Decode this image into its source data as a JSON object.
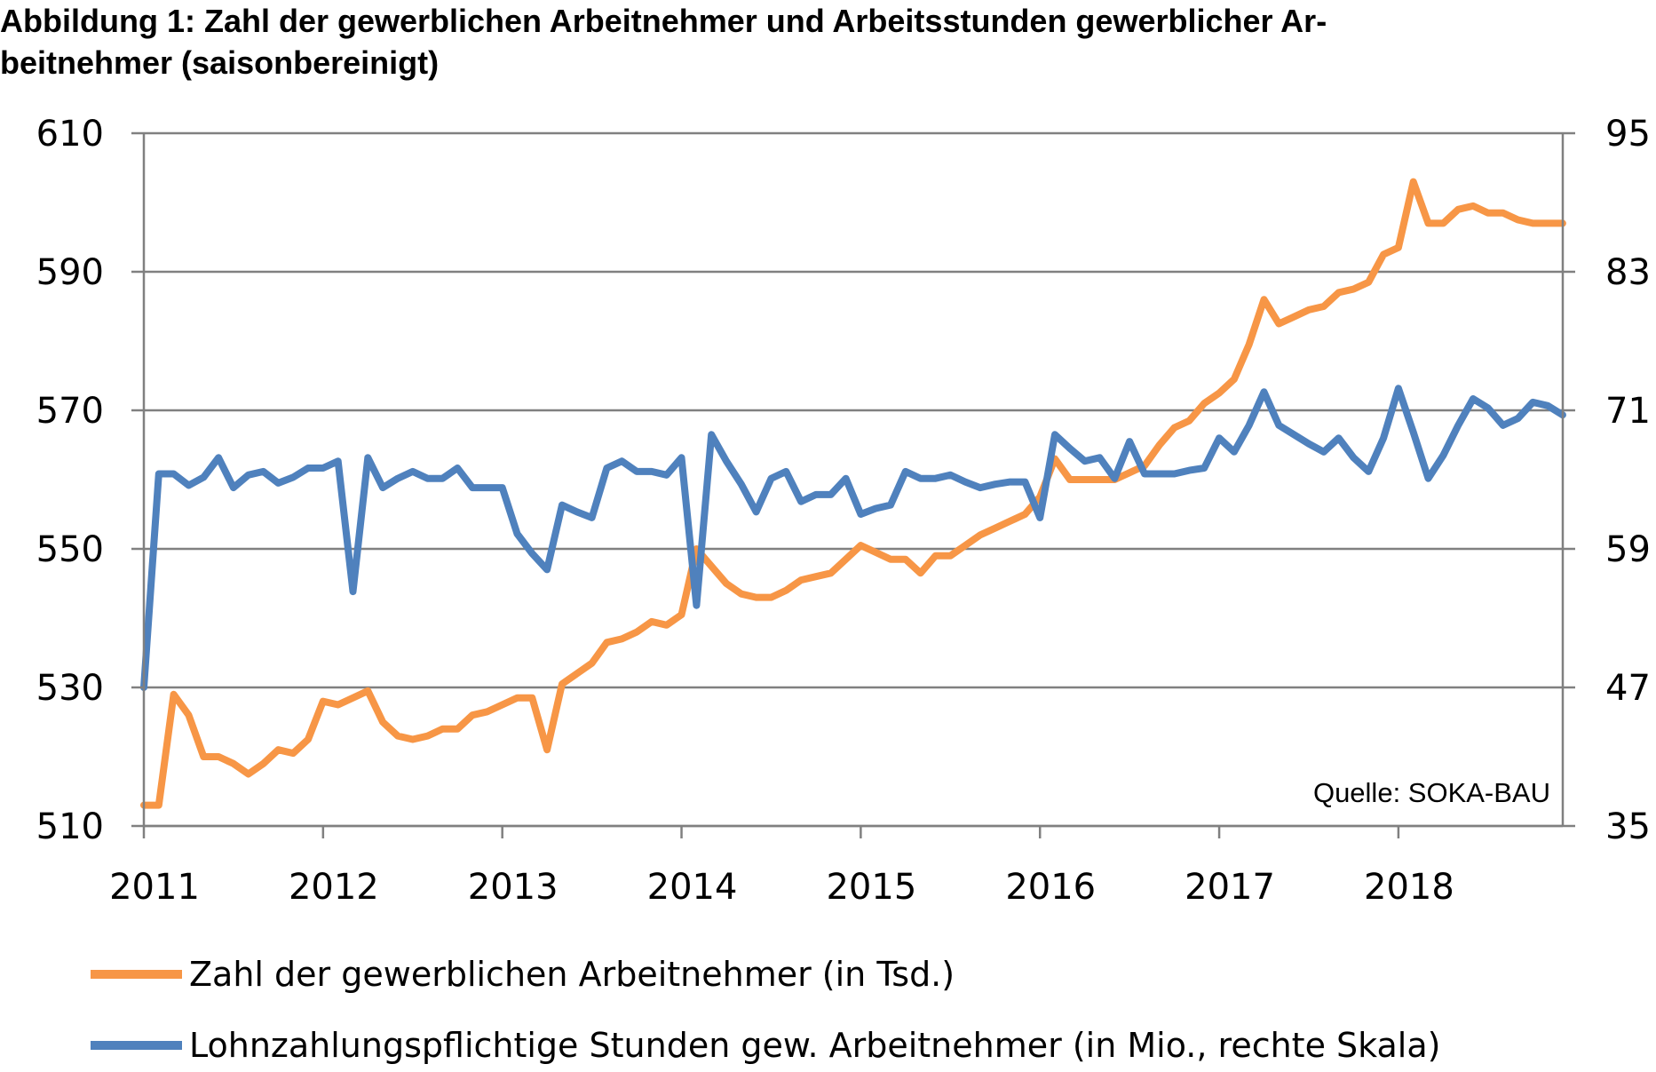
{
  "title_line1": "Abbildung 1: Zahl der gewerblichen Arbeitnehmer und Arbeitsstunden gewerblicher Ar-",
  "title_line2": "beitnehmer (saisonbereinigt)",
  "source": "Quelle: SOKA-BAU",
  "colors": {
    "workers": "#F79646",
    "hours": "#4F81BD",
    "grid": "#808080"
  },
  "chart_data": {
    "type": "line",
    "title": "Abbildung 1: Zahl der gewerblichen Arbeitnehmer und Arbeitsstunden gewerblicher Arbeitnehmer (saisonbereinigt)",
    "x_ticks": [
      "2011",
      "2012",
      "2013",
      "2014",
      "2015",
      "2016",
      "2017",
      "2018"
    ],
    "x_start": 2011,
    "x_range": [
      2011,
      2018.917
    ],
    "y_left_ticks": [
      "510",
      "530",
      "550",
      "570",
      "590",
      "610"
    ],
    "y_left_range": [
      510,
      610
    ],
    "y_right_ticks": [
      "35",
      "47",
      "59",
      "71",
      "83",
      "95"
    ],
    "y_right_range": [
      35,
      95
    ],
    "grid": "horizontal",
    "legend_position": "bottom",
    "series": [
      {
        "name": "Zahl der gewerblichen Arbeitnehmer (in Tsd.)",
        "axis": "left",
        "x": [
          "2011-01",
          "2011-02",
          "2011-03",
          "2011-04",
          "2011-05",
          "2011-06",
          "2011-07",
          "2011-08",
          "2011-09",
          "2011-10",
          "2011-11",
          "2011-12",
          "2012-01",
          "2012-02",
          "2012-03",
          "2012-04",
          "2012-05",
          "2012-06",
          "2012-07",
          "2012-08",
          "2012-09",
          "2012-10",
          "2012-11",
          "2012-12",
          "2013-01",
          "2013-02",
          "2013-03",
          "2013-04",
          "2013-05",
          "2013-06",
          "2013-07",
          "2013-08",
          "2013-09",
          "2013-10",
          "2013-11",
          "2013-12",
          "2014-01",
          "2014-02",
          "2014-03",
          "2014-04",
          "2014-05",
          "2014-06",
          "2014-07",
          "2014-08",
          "2014-09",
          "2014-10",
          "2014-11",
          "2014-12",
          "2015-01",
          "2015-02",
          "2015-03",
          "2015-04",
          "2015-05",
          "2015-06",
          "2015-07",
          "2015-08",
          "2015-09",
          "2015-10",
          "2015-11",
          "2015-12",
          "2016-01",
          "2016-02",
          "2016-03",
          "2016-04",
          "2016-05",
          "2016-06",
          "2016-07",
          "2016-08",
          "2016-09",
          "2016-10",
          "2016-11",
          "2016-12",
          "2017-01",
          "2017-02",
          "2017-03",
          "2017-04",
          "2017-05",
          "2017-06",
          "2017-07",
          "2017-08",
          "2017-09",
          "2017-10",
          "2017-11",
          "2017-12",
          "2018-01",
          "2018-02",
          "2018-03",
          "2018-04",
          "2018-05",
          "2018-06",
          "2018-07",
          "2018-08",
          "2018-09",
          "2018-10",
          "2018-11",
          "2018-12"
        ],
        "values": [
          513,
          513,
          529,
          526,
          520,
          520,
          519,
          517.5,
          519,
          521,
          520.5,
          522.5,
          528,
          527.5,
          528.5,
          529.5,
          525,
          523,
          522.5,
          523,
          524,
          524,
          526,
          526.5,
          527.5,
          528.5,
          528.5,
          521,
          530.5,
          532,
          533.5,
          536.5,
          537,
          538,
          539.5,
          539,
          540.5,
          550,
          547.5,
          545,
          543.5,
          543,
          543,
          544,
          545.5,
          546,
          546.5,
          548.5,
          550.5,
          549.5,
          548.5,
          548.5,
          546.5,
          549,
          549,
          550.5,
          552,
          553,
          554,
          555,
          557.5,
          563,
          560,
          560,
          560,
          560,
          561,
          562,
          565,
          567.5,
          568.5,
          571,
          572.5,
          574.5,
          579.5,
          586,
          582.5,
          583.5,
          584.5,
          585,
          587,
          587.5,
          588.5,
          592.5,
          593.5,
          603,
          597,
          597,
          599,
          599.5,
          598.5,
          598.5,
          597.5,
          597,
          597,
          597
        ]
      },
      {
        "name": "Lohnzahlungspflichtige Stunden gew. Arbeitnehmer (in Mio., rechte Skala)",
        "axis": "right",
        "x": [
          "2011-01",
          "2011-02",
          "2011-03",
          "2011-04",
          "2011-05",
          "2011-06",
          "2011-07",
          "2011-08",
          "2011-09",
          "2011-10",
          "2011-11",
          "2011-12",
          "2012-01",
          "2012-02",
          "2012-03",
          "2012-04",
          "2012-05",
          "2012-06",
          "2012-07",
          "2012-08",
          "2012-09",
          "2012-10",
          "2012-11",
          "2012-12",
          "2013-01",
          "2013-02",
          "2013-03",
          "2013-04",
          "2013-05",
          "2013-06",
          "2013-07",
          "2013-08",
          "2013-09",
          "2013-10",
          "2013-11",
          "2013-12",
          "2014-01",
          "2014-02",
          "2014-03",
          "2014-04",
          "2014-05",
          "2014-06",
          "2014-07",
          "2014-08",
          "2014-09",
          "2014-10",
          "2014-11",
          "2014-12",
          "2015-01",
          "2015-02",
          "2015-03",
          "2015-04",
          "2015-05",
          "2015-06",
          "2015-07",
          "2015-08",
          "2015-09",
          "2015-10",
          "2015-11",
          "2015-12",
          "2016-01",
          "2016-02",
          "2016-03",
          "2016-04",
          "2016-05",
          "2016-06",
          "2016-07",
          "2016-08",
          "2016-09",
          "2016-10",
          "2016-11",
          "2016-12",
          "2017-01",
          "2017-02",
          "2017-03",
          "2017-04",
          "2017-05",
          "2017-06",
          "2017-07",
          "2017-08",
          "2017-09",
          "2017-10",
          "2017-11",
          "2017-12",
          "2018-01",
          "2018-02",
          "2018-03",
          "2018-04",
          "2018-05",
          "2018-06",
          "2018-07",
          "2018-08",
          "2018-09",
          "2018-10",
          "2018-11",
          "2018-12"
        ],
        "values": [
          47,
          65.5,
          65.5,
          64.5,
          65.2,
          66.9,
          64.3,
          65.4,
          65.7,
          64.7,
          65.2,
          66.0,
          66.0,
          66.6,
          55.3,
          66.9,
          64.3,
          65.1,
          65.7,
          65.1,
          65.1,
          66.0,
          64.3,
          64.3,
          64.3,
          60.3,
          58.6,
          57.2,
          62.8,
          62.2,
          61.7,
          66.0,
          66.6,
          65.7,
          65.7,
          65.4,
          66.9,
          54.1,
          68.9,
          66.6,
          64.6,
          62.2,
          65.1,
          65.7,
          63.1,
          63.7,
          63.7,
          65.1,
          62.0,
          62.5,
          62.8,
          65.7,
          65.1,
          65.1,
          65.4,
          64.8,
          64.3,
          64.6,
          64.8,
          64.8,
          61.7,
          68.9,
          67.7,
          66.6,
          66.9,
          65.1,
          68.3,
          65.5,
          65.5,
          65.5,
          65.8,
          66.0,
          68.6,
          67.4,
          69.7,
          72.6,
          69.7,
          68.9,
          68.1,
          67.4,
          68.6,
          66.9,
          65.7,
          68.6,
          72.9,
          69.1,
          65.1,
          67.1,
          69.7,
          72.0,
          71.2,
          69.7,
          70.3,
          71.7,
          71.4,
          70.6
        ]
      }
    ]
  }
}
